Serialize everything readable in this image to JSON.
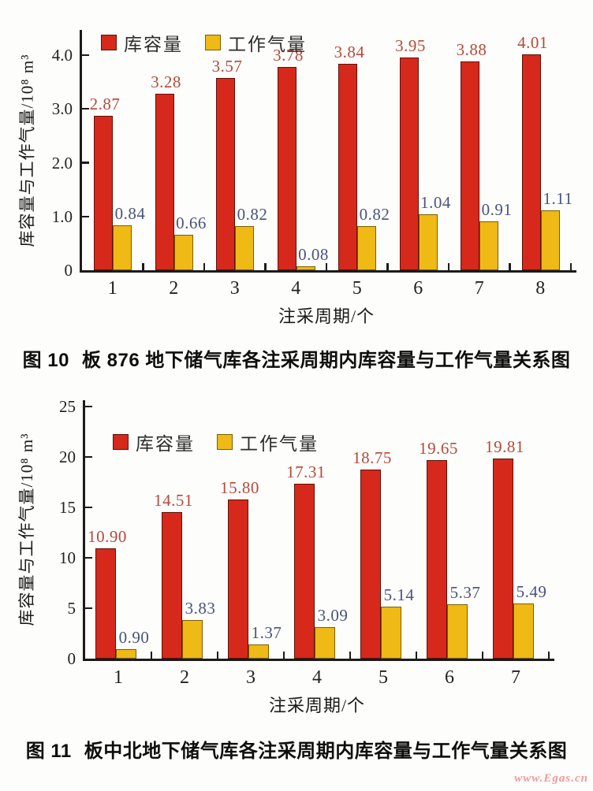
{
  "page": {
    "background": "#fdfdfb",
    "watermark": "www.Egas.cn",
    "watermark_color": "#f2989f"
  },
  "colors": {
    "axis": "#1b1b1b",
    "bar_red": "#d6291c",
    "bar_red_border": "#601008",
    "bar_yellow": "#efb916",
    "bar_yellow_border": "#7a5f00",
    "red_value_label": "#b34a3a",
    "yellow_value_label": "#49547c",
    "caption_text": "#0e0e0e"
  },
  "chart_data": [
    {
      "type": "bar",
      "figure_label": "图 10",
      "title": "板 876 地下储气库各注采周期内库容量与工作气量关系图",
      "xlabel": "注采周期/个",
      "ylabel": "库容量与工作气量/10⁸ m³",
      "categories": [
        "1",
        "2",
        "3",
        "4",
        "5",
        "6",
        "7",
        "8"
      ],
      "ylim": [
        0,
        4.4
      ],
      "yticks": [
        0,
        1.0,
        2.0,
        3.0,
        4.0
      ],
      "ytick_labels": [
        "0",
        "1.0",
        "2.0",
        "3.0",
        "4.0"
      ],
      "grid": false,
      "legend_position": "top-left-inside",
      "series": [
        {
          "name": "库容量",
          "color": "#d6291c",
          "border": "#601008",
          "label_color": "#b34a3a",
          "values": [
            2.87,
            3.28,
            3.57,
            3.78,
            3.84,
            3.95,
            3.88,
            4.01
          ],
          "value_labels": [
            "2.87",
            "3.28",
            "3.57",
            "3.78",
            "3.84",
            "3.95",
            "3.88",
            "4.01"
          ]
        },
        {
          "name": "工作气量",
          "color": "#efb916",
          "border": "#7a5f00",
          "label_color": "#49547c",
          "values": [
            0.84,
            0.66,
            0.82,
            0.08,
            0.82,
            1.04,
            0.91,
            1.11
          ],
          "value_labels": [
            "0.84",
            "0.66",
            "0.82",
            "0.08",
            "0.82",
            "1.04",
            "0.91",
            "1.11"
          ]
        }
      ]
    },
    {
      "type": "bar",
      "figure_label": "图 11",
      "title": "板中北地下储气库各注采周期内库容量与工作气量关系图",
      "xlabel": "注采周期/个",
      "ylabel": "库容量与工作气量/10⁸ m³",
      "categories": [
        "1",
        "2",
        "3",
        "4",
        "5",
        "6",
        "7"
      ],
      "ylim": [
        0,
        25.6
      ],
      "yticks": [
        0,
        5,
        10,
        15,
        20,
        25
      ],
      "ytick_labels": [
        "0",
        "5",
        "10",
        "15",
        "20",
        "25"
      ],
      "grid": false,
      "legend_position": "top-left-inside",
      "series": [
        {
          "name": "库容量",
          "color": "#d6291c",
          "border": "#601008",
          "label_color": "#b34a3a",
          "values": [
            10.9,
            14.51,
            15.8,
            17.31,
            18.75,
            19.65,
            19.81
          ],
          "value_labels": [
            "10.90",
            "14.51",
            "15.80",
            "17.31",
            "18.75",
            "19.65",
            "19.81"
          ]
        },
        {
          "name": "工作气量",
          "color": "#efb916",
          "border": "#7a5f00",
          "label_color": "#49547c",
          "values": [
            0.9,
            3.83,
            1.37,
            3.09,
            5.14,
            5.37,
            5.49
          ],
          "value_labels": [
            "0.90",
            "3.83",
            "1.37",
            "3.09",
            "5.14",
            "5.37",
            "5.49"
          ]
        }
      ]
    }
  ]
}
